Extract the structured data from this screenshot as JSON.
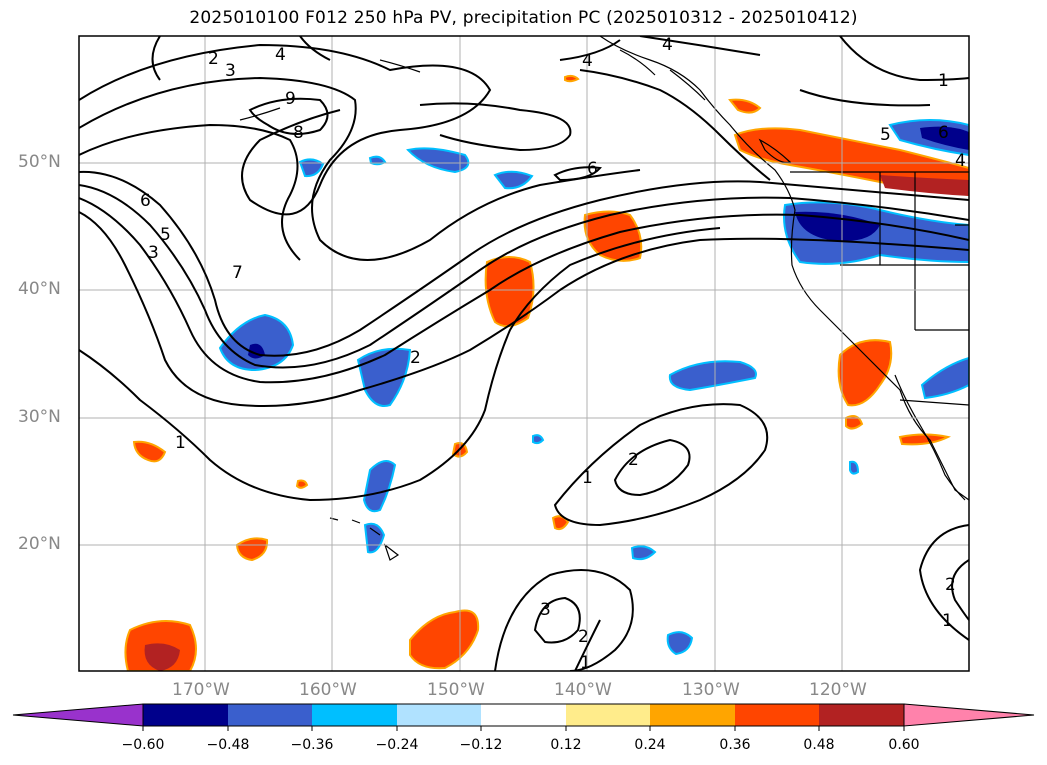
{
  "title": "2025010100 F012 250 hPa PV, precipitation PC (2025010312 - 2025010412)",
  "lat_labels": [
    "50°N",
    "40°N",
    "30°N",
    "20°N"
  ],
  "lon_labels": [
    "170°W",
    "160°W",
    "150°W",
    "140°W",
    "130°W",
    "120°W"
  ],
  "contour_labels": [
    "2",
    "3",
    "4",
    "9",
    "8",
    "6",
    "5",
    "3",
    "7",
    "4",
    "6",
    "1",
    "2",
    "2",
    "1",
    "3",
    "2",
    "1",
    "2",
    "1",
    "4",
    "1",
    "5",
    "6",
    "4"
  ],
  "colorbar": {
    "ticks": [
      "−0.60",
      "−0.48",
      "−0.36",
      "−0.24",
      "−0.12",
      "0.12",
      "0.24",
      "0.36",
      "0.48",
      "0.60"
    ],
    "colors": [
      "#9932cc",
      "#00008b",
      "#3a5fcd",
      "#00bfff",
      "#b0e2ff",
      "#ffffff",
      "#ffec8b",
      "#ffa500",
      "#ff4500",
      "#b22222",
      "#ff82ab"
    ]
  }
}
